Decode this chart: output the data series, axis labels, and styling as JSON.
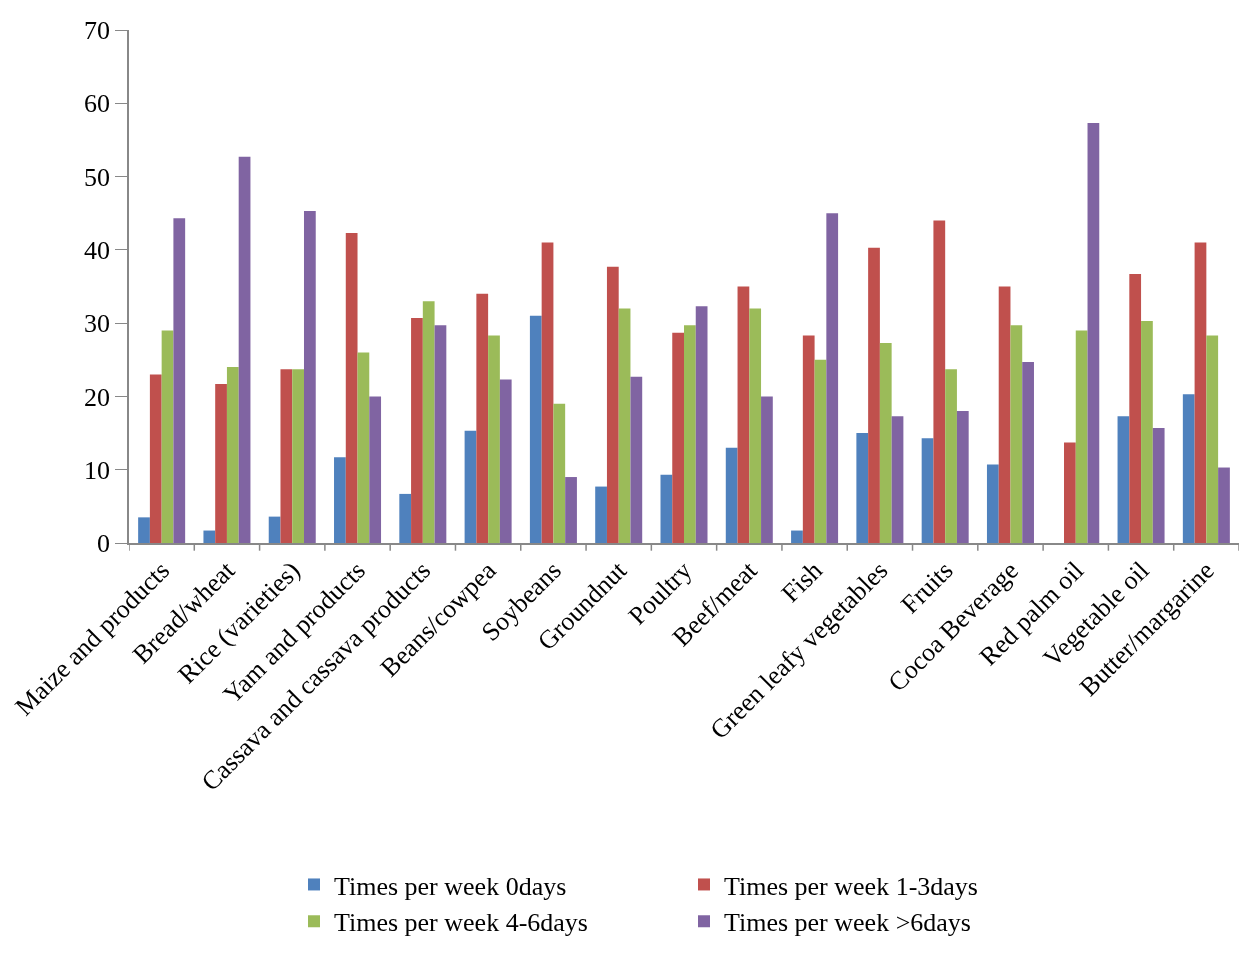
{
  "chart_data": {
    "type": "bar",
    "categories": [
      "Maize and products",
      "Bread/wheat",
      "Rice (varieties)",
      "Yam and products",
      "Cassava and cassava products",
      "Beans/cowpea",
      "Soybeans",
      "Groundnut",
      "Poultry",
      "Beef/meat",
      "Fish",
      "Green leafy vegetables",
      "Fruits",
      "Cocoa Beverage",
      "Red palm oil",
      "Vegetable oil",
      "Butter/margarine"
    ],
    "series": [
      {
        "name": "Times per week 0days",
        "color": "#4f81bd",
        "values": [
          3.5,
          1.7,
          3.6,
          11.7,
          6.7,
          15.3,
          31,
          7.7,
          9.3,
          13,
          1.7,
          15,
          14.3,
          10.7,
          0,
          17.3,
          20.3
        ]
      },
      {
        "name": "Times per week 1-3days",
        "color": "#c0504d",
        "values": [
          23,
          21.7,
          23.7,
          42.3,
          30.7,
          34,
          41,
          37.7,
          28.7,
          35,
          28.3,
          40.3,
          44,
          35,
          13.7,
          36.7,
          41
        ]
      },
      {
        "name": "Times per week 4-6days",
        "color": "#9bbb59",
        "values": [
          29,
          24,
          23.7,
          26,
          33,
          28.3,
          19,
          32,
          29.7,
          32,
          25,
          27.3,
          23.7,
          29.7,
          29,
          30.3,
          28.3
        ]
      },
      {
        "name": "Times per week >6days",
        "color": "#8064a2",
        "values": [
          44.3,
          52.7,
          45.3,
          20,
          29.7,
          22.3,
          9,
          22.7,
          32.3,
          20,
          45,
          17.3,
          18,
          24.7,
          57.3,
          15.7,
          10.3
        ]
      }
    ],
    "ylim": [
      0,
      70
    ],
    "yticks": [
      0,
      10,
      20,
      30,
      40,
      50,
      60,
      70
    ],
    "legend": "bottom"
  }
}
